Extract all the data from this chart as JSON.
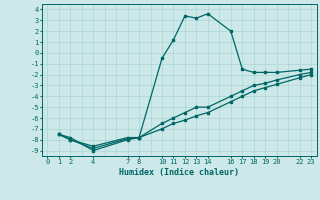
{
  "title": "",
  "xlabel": "Humidex (Indice chaleur)",
  "bg_color": "#cce8e8",
  "grid_color": "#aad4d4",
  "line_color": "#006666",
  "xticks": [
    0,
    1,
    2,
    4,
    7,
    8,
    10,
    11,
    12,
    13,
    14,
    16,
    17,
    18,
    19,
    20,
    22,
    23
  ],
  "yticks": [
    4,
    3,
    2,
    1,
    0,
    -1,
    -2,
    -3,
    -4,
    -5,
    -6,
    -7,
    -8,
    -9
  ],
  "ylim": [
    -9.5,
    4.5
  ],
  "xlim": [
    -0.5,
    23.5
  ],
  "line1_x": [
    1,
    2,
    4,
    7,
    8,
    10,
    11,
    12,
    13,
    14,
    16,
    17,
    18,
    19,
    20,
    22,
    23
  ],
  "line1_y": [
    -7.5,
    -7.8,
    -9.0,
    -8.0,
    -7.8,
    -0.5,
    1.2,
    3.4,
    3.2,
    3.6,
    2.0,
    -1.5,
    -1.8,
    -1.8,
    -1.8,
    -1.6,
    -1.5
  ],
  "line2_x": [
    1,
    2,
    4,
    7,
    8,
    10,
    11,
    12,
    13,
    14,
    16,
    17,
    18,
    19,
    20,
    22,
    23
  ],
  "line2_y": [
    -7.5,
    -8.0,
    -8.6,
    -7.8,
    -7.8,
    -6.5,
    -6.0,
    -5.5,
    -5.0,
    -5.0,
    -4.0,
    -3.5,
    -3.0,
    -2.8,
    -2.5,
    -2.0,
    -1.8
  ],
  "line3_x": [
    1,
    2,
    4,
    7,
    8,
    10,
    11,
    12,
    13,
    14,
    16,
    17,
    18,
    19,
    20,
    22,
    23
  ],
  "line3_y": [
    -7.5,
    -8.0,
    -8.8,
    -7.9,
    -7.8,
    -7.0,
    -6.5,
    -6.2,
    -5.8,
    -5.5,
    -4.5,
    -4.0,
    -3.5,
    -3.2,
    -2.9,
    -2.3,
    -2.0
  ],
  "marker_size": 2.0,
  "linewidth": 0.9,
  "tick_fontsize": 5.0,
  "xlabel_fontsize": 6.0,
  "font_family": "monospace"
}
